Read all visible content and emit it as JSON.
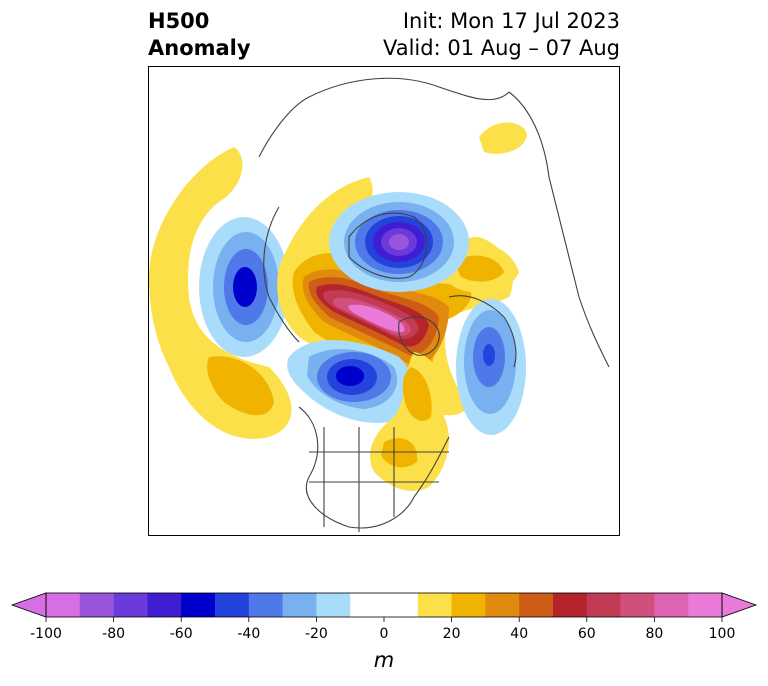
{
  "title": {
    "line1": "H500",
    "line2": "Anomaly",
    "init": "Init: Mon 17 Jul 2023",
    "valid": "Valid: 01 Aug – 07 Aug"
  },
  "colorbar": {
    "unit": "m",
    "ticks": [
      "-100",
      "-80",
      "-60",
      "-40",
      "-20",
      "0",
      "20",
      "40",
      "60",
      "80",
      "100"
    ],
    "levels": [
      -100,
      -90,
      -80,
      -70,
      -60,
      -50,
      -40,
      -30,
      -20,
      -10,
      10,
      20,
      30,
      40,
      50,
      60,
      70,
      80,
      90,
      100
    ],
    "colors": [
      "#d76ee4",
      "#9a55dd",
      "#6a3adb",
      "#3e1ed0",
      "#0000cc",
      "#2343dc",
      "#4f79e8",
      "#78b0f0",
      "#a9dcfb",
      "#ffffff",
      "#fce04a",
      "#f0b400",
      "#e08b0e",
      "#cc5c16",
      "#b3252a",
      "#c23b55",
      "#d14f7d",
      "#dd64b1",
      "#e97ad8"
    ],
    "extend_low_color": "#d76ee4",
    "extend_high_color": "#e97ad8"
  }
}
